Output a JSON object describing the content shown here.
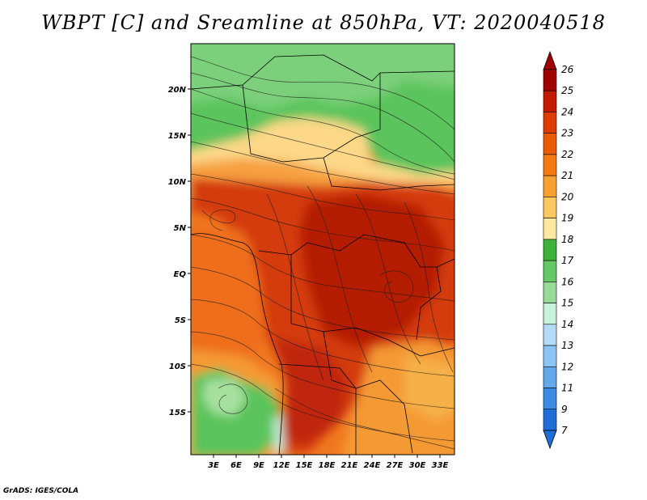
{
  "title": "WBPT [C] and Sreamline at 850hPa, VT: 2020040518",
  "credit": "GrADS: IGES/COLA",
  "map": {
    "lat_labels": [
      "20N",
      "15N",
      "10N",
      "5N",
      "EQ",
      "5S",
      "10S",
      "15S"
    ],
    "lon_labels": [
      "3E",
      "6E",
      "9E",
      "12E",
      "15E",
      "18E",
      "21E",
      "24E",
      "27E",
      "30E",
      "33E"
    ]
  },
  "colorbar": {
    "levels": [
      "26",
      "25",
      "24",
      "23",
      "22",
      "21",
      "20",
      "19",
      "18",
      "17",
      "16",
      "15",
      "14",
      "13",
      "12",
      "11",
      "9",
      "7"
    ],
    "colors": [
      "#a00000",
      "#c41a00",
      "#dc3c00",
      "#ec5a00",
      "#f47a10",
      "#f8a030",
      "#fcc860",
      "#fde8a0",
      "#3cb43c",
      "#64c864",
      "#96dc96",
      "#c8f0dc",
      "#b4dcf8",
      "#8cc4f4",
      "#64a8ec",
      "#3c8ce4",
      "#1e6ed8"
    ]
  },
  "fields": {
    "north_green": "#5cc45c",
    "pale_green": "#a8e0a0",
    "cream": "#fcd888",
    "orange": "#f07820",
    "red": "#d43a10",
    "deep_red": "#b41e06",
    "light_orange": "#f4a040"
  }
}
